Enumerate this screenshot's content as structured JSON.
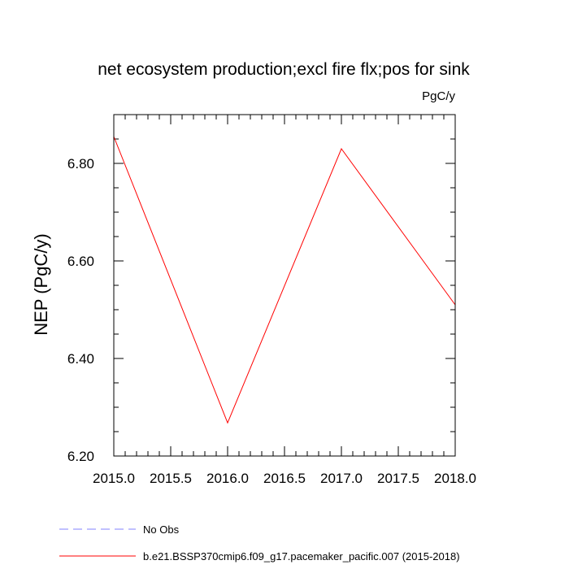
{
  "chart_data": {
    "type": "line",
    "title": "net ecosystem production;excl fire flx;pos for sink",
    "units_label": "PgC/y",
    "ylabel": "NEP  (PgC/y)",
    "xlabel": "",
    "xlim": [
      2015.0,
      2018.0
    ],
    "ylim": [
      6.2,
      6.9
    ],
    "x_ticks": [
      2015.0,
      2015.5,
      2016.0,
      2016.5,
      2017.0,
      2017.5,
      2018.0
    ],
    "x_tick_labels": [
      "2015.0",
      "2015.5",
      "2016.0",
      "2016.5",
      "2017.0",
      "2017.5",
      "2018.0"
    ],
    "y_ticks": [
      6.2,
      6.4,
      6.6,
      6.8
    ],
    "y_tick_labels": [
      "6.20",
      "6.40",
      "6.60",
      "6.80"
    ],
    "grid": false,
    "legend_position": "bottom-left",
    "series": [
      {
        "name": "b.e21.BSSP370cmip6.f09_g17.pacemaker_pacific.007 (2015-2018)",
        "color": "#ff0000",
        "dash": "solid",
        "x": [
          2015,
          2016,
          2017,
          2018
        ],
        "y": [
          6.855,
          6.268,
          6.83,
          6.51
        ]
      }
    ],
    "legend": [
      {
        "label": "No Obs",
        "color": "#8080ff",
        "dash": "dashed"
      },
      {
        "label": "b.e21.BSSP370cmip6.f09_g17.pacemaker_pacific.007 (2015-2018)",
        "color": "#ff0000",
        "dash": "solid"
      }
    ]
  }
}
